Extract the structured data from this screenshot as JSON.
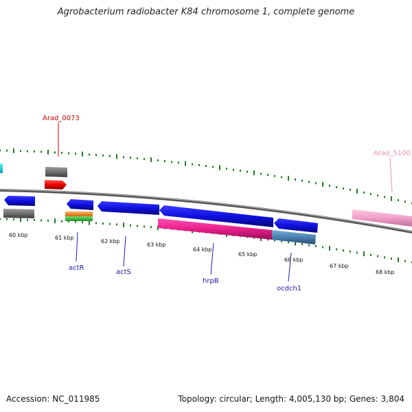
{
  "title": "Agrobacterium radiobacter K84 chromosome 1, complete genome",
  "footer": {
    "accession": "Accession: NC_011985",
    "summary": "Topology: circular; Length: 4,005,130 bp; Genes: 3,804"
  },
  "scale_labels": [
    "60 kbp",
    "61 kbp",
    "62 kbp",
    "63 kbp",
    "64 kbp",
    "65 kbp",
    "66 kbp",
    "67 kbp",
    "68 kbp"
  ],
  "gene_labels": {
    "arad_0073": "Arad_0073",
    "arad_5100": "Arad_5100",
    "actR": "actR",
    "actS": "actS",
    "hrpB": "hrpB",
    "ocdch1": "ocdch1"
  },
  "colors": {
    "blue_cds": "#1010e0",
    "gray_feature": "#707070",
    "red_feature": "#ee0000",
    "magenta_feature": "#e8208c",
    "steelblue_feature": "#4a80b0",
    "pink_feature": "#f0a0c8",
    "orange_feature": "#f08a20",
    "green_feature": "#40c040",
    "tick_green": "#207a20",
    "label_red": "#cc0000",
    "label_pink": "#e890b8",
    "label_blue": "#1a1aa8"
  }
}
